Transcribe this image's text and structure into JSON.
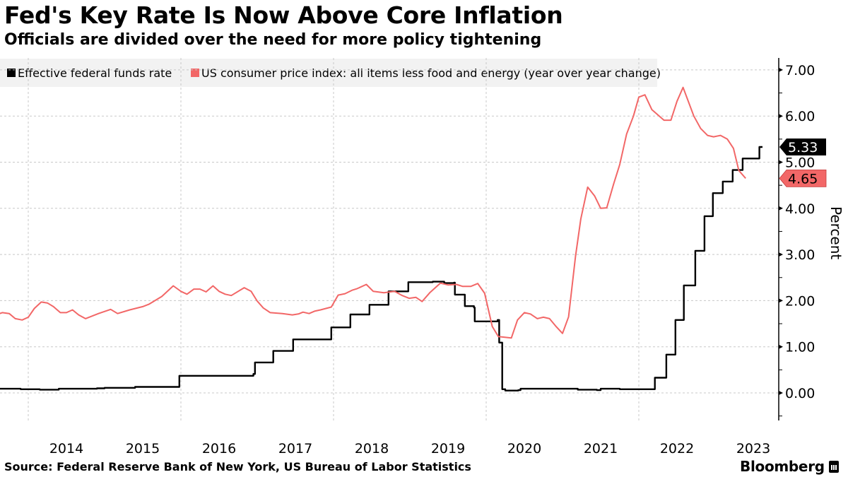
{
  "header": {
    "title": "Fed's Key Rate Is Now Above Core Inflation",
    "subtitle": "Officials are divided over the need for more policy tightening"
  },
  "footer": {
    "source": "Source: Federal Reserve Bank of New York, US Bureau of Labor Statistics",
    "brand": "Bloomberg",
    "brand_icon": "bloomberg-terminal-icon"
  },
  "colors": {
    "fed_funds": "#000000",
    "core_cpi": "#f26767",
    "legend_bg": "#f2f2f2",
    "grid": "#c8c8c8"
  },
  "chart_data": {
    "type": "line",
    "title": "Fed's Key Rate Is Now Above Core Inflation",
    "subtitle": "Officials are divided over the need for more policy tightening",
    "xlabel": "",
    "ylabel": "Percent",
    "ylim": [
      -0.6,
      7.2
    ],
    "xlim": [
      2013.37,
      2023.62
    ],
    "y_ticks": [
      0,
      1,
      2,
      3,
      4,
      5,
      6,
      7
    ],
    "y_tick_labels": [
      "0.00",
      "1.00",
      "2.00",
      "3.00",
      "4.00",
      "5.00",
      "6.00",
      "7.00"
    ],
    "x_tick_labels": [
      "2014",
      "2015",
      "2016",
      "2017",
      "2018",
      "2019",
      "2020",
      "2021",
      "2022",
      "2023"
    ],
    "x_tick_positions": [
      2014.5,
      2015.5,
      2016.5,
      2017.5,
      2018.5,
      2019.5,
      2020.5,
      2021.5,
      2022.5,
      2023.5
    ],
    "x_gridlines": [
      2014,
      2016,
      2018,
      2020,
      2022
    ],
    "grid": true,
    "y_axis_side": "right",
    "legend_position": "top-left",
    "series": [
      {
        "name": "Effective federal funds rate",
        "color": "#000000",
        "step": true,
        "last_value_label": "5.33",
        "points": [
          [
            2013.37,
            0.09
          ],
          [
            2013.9,
            0.08
          ],
          [
            2014.15,
            0.07
          ],
          [
            2014.4,
            0.09
          ],
          [
            2014.9,
            0.1
          ],
          [
            2015.0,
            0.11
          ],
          [
            2015.4,
            0.13
          ],
          [
            2015.95,
            0.13
          ],
          [
            2015.98,
            0.37
          ],
          [
            2016.95,
            0.41
          ],
          [
            2016.97,
            0.66
          ],
          [
            2017.2,
            0.66
          ],
          [
            2017.21,
            0.91
          ],
          [
            2017.46,
            0.91
          ],
          [
            2017.47,
            1.16
          ],
          [
            2017.96,
            1.16
          ],
          [
            2017.97,
            1.42
          ],
          [
            2018.21,
            1.42
          ],
          [
            2018.22,
            1.7
          ],
          [
            2018.46,
            1.7
          ],
          [
            2018.47,
            1.91
          ],
          [
            2018.71,
            1.91
          ],
          [
            2018.72,
            2.2
          ],
          [
            2018.97,
            2.2
          ],
          [
            2018.98,
            2.4
          ],
          [
            2019.3,
            2.41
          ],
          [
            2019.45,
            2.38
          ],
          [
            2019.58,
            2.39
          ],
          [
            2019.59,
            2.13
          ],
          [
            2019.71,
            2.13
          ],
          [
            2019.72,
            1.88
          ],
          [
            2019.84,
            1.85
          ],
          [
            2019.85,
            1.55
          ],
          [
            2020.15,
            1.58
          ],
          [
            2020.17,
            1.09
          ],
          [
            2020.21,
            0.08
          ],
          [
            2020.25,
            0.05
          ],
          [
            2020.42,
            0.06
          ],
          [
            2020.45,
            0.09
          ],
          [
            2021.2,
            0.07
          ],
          [
            2021.45,
            0.06
          ],
          [
            2021.5,
            0.09
          ],
          [
            2021.75,
            0.08
          ],
          [
            2022.2,
            0.08
          ],
          [
            2022.21,
            0.33
          ],
          [
            2022.35,
            0.33
          ],
          [
            2022.36,
            0.83
          ],
          [
            2022.47,
            0.83
          ],
          [
            2022.48,
            1.58
          ],
          [
            2022.58,
            1.58
          ],
          [
            2022.59,
            2.33
          ],
          [
            2022.73,
            2.33
          ],
          [
            2022.74,
            3.08
          ],
          [
            2022.85,
            3.08
          ],
          [
            2022.86,
            3.83
          ],
          [
            2022.96,
            3.83
          ],
          [
            2022.97,
            4.33
          ],
          [
            2023.09,
            4.33
          ],
          [
            2023.1,
            4.58
          ],
          [
            2023.22,
            4.58
          ],
          [
            2023.23,
            4.83
          ],
          [
            2023.35,
            4.83
          ],
          [
            2023.36,
            5.08
          ],
          [
            2023.57,
            5.08
          ],
          [
            2023.58,
            5.33
          ],
          [
            2023.62,
            5.33
          ]
        ]
      },
      {
        "name": "US consumer price index: all items less food and energy (year over year change)",
        "color": "#f26767",
        "step": false,
        "last_value_label": "4.65",
        "points": [
          [
            2013.42,
            1.77
          ],
          [
            2013.58,
            1.69
          ],
          [
            2013.66,
            1.74
          ],
          [
            2013.75,
            1.72
          ],
          [
            2013.83,
            1.61
          ],
          [
            2013.92,
            1.58
          ],
          [
            2014.0,
            1.64
          ],
          [
            2014.08,
            1.83
          ],
          [
            2014.17,
            1.97
          ],
          [
            2014.25,
            1.95
          ],
          [
            2014.33,
            1.87
          ],
          [
            2014.42,
            1.74
          ],
          [
            2014.5,
            1.74
          ],
          [
            2014.58,
            1.8
          ],
          [
            2014.66,
            1.69
          ],
          [
            2014.75,
            1.61
          ],
          [
            2014.92,
            1.72
          ],
          [
            2015.08,
            1.81
          ],
          [
            2015.17,
            1.72
          ],
          [
            2015.33,
            1.8
          ],
          [
            2015.5,
            1.87
          ],
          [
            2015.58,
            1.92
          ],
          [
            2015.75,
            2.09
          ],
          [
            2015.9,
            2.32
          ],
          [
            2016.0,
            2.2
          ],
          [
            2016.08,
            2.14
          ],
          [
            2016.17,
            2.25
          ],
          [
            2016.25,
            2.25
          ],
          [
            2016.33,
            2.19
          ],
          [
            2016.42,
            2.32
          ],
          [
            2016.5,
            2.2
          ],
          [
            2016.58,
            2.14
          ],
          [
            2016.66,
            2.11
          ],
          [
            2016.83,
            2.28
          ],
          [
            2016.92,
            2.2
          ],
          [
            2017.0,
            1.99
          ],
          [
            2017.08,
            1.84
          ],
          [
            2017.17,
            1.74
          ],
          [
            2017.33,
            1.72
          ],
          [
            2017.46,
            1.69
          ],
          [
            2017.54,
            1.71
          ],
          [
            2017.6,
            1.75
          ],
          [
            2017.68,
            1.72
          ],
          [
            2017.75,
            1.77
          ],
          [
            2017.83,
            1.8
          ],
          [
            2017.97,
            1.86
          ],
          [
            2018.06,
            2.12
          ],
          [
            2018.15,
            2.15
          ],
          [
            2018.25,
            2.23
          ],
          [
            2018.31,
            2.26
          ],
          [
            2018.43,
            2.35
          ],
          [
            2018.52,
            2.2
          ],
          [
            2018.66,
            2.17
          ],
          [
            2018.8,
            2.2
          ],
          [
            2018.9,
            2.11
          ],
          [
            2018.99,
            2.05
          ],
          [
            2019.08,
            2.07
          ],
          [
            2019.16,
            1.98
          ],
          [
            2019.26,
            2.17
          ],
          [
            2019.4,
            2.38
          ],
          [
            2019.5,
            2.34
          ],
          [
            2019.61,
            2.35
          ],
          [
            2019.69,
            2.31
          ],
          [
            2019.8,
            2.31
          ],
          [
            2019.89,
            2.37
          ],
          [
            2019.98,
            2.16
          ],
          [
            2020.08,
            1.44
          ],
          [
            2020.16,
            1.22
          ],
          [
            2020.33,
            1.19
          ],
          [
            2020.41,
            1.58
          ],
          [
            2020.5,
            1.74
          ],
          [
            2020.58,
            1.71
          ],
          [
            2020.67,
            1.61
          ],
          [
            2020.75,
            1.64
          ],
          [
            2020.83,
            1.61
          ],
          [
            2020.92,
            1.43
          ],
          [
            2021.0,
            1.29
          ],
          [
            2021.08,
            1.65
          ],
          [
            2021.17,
            2.96
          ],
          [
            2021.24,
            3.77
          ],
          [
            2021.33,
            4.46
          ],
          [
            2021.42,
            4.27
          ],
          [
            2021.5,
            4.0
          ],
          [
            2021.58,
            4.01
          ],
          [
            2021.67,
            4.53
          ],
          [
            2021.75,
            4.95
          ],
          [
            2021.84,
            5.61
          ],
          [
            2021.93,
            6.0
          ],
          [
            2022.0,
            6.41
          ],
          [
            2022.08,
            6.46
          ],
          [
            2022.17,
            6.14
          ],
          [
            2022.33,
            5.91
          ],
          [
            2022.42,
            5.91
          ],
          [
            2022.5,
            6.32
          ],
          [
            2022.58,
            6.62
          ],
          [
            2022.72,
            6.0
          ],
          [
            2022.81,
            5.73
          ],
          [
            2022.9,
            5.58
          ],
          [
            2022.98,
            5.55
          ],
          [
            2023.07,
            5.58
          ],
          [
            2023.16,
            5.5
          ],
          [
            2023.24,
            5.3
          ],
          [
            2023.31,
            4.82
          ],
          [
            2023.4,
            4.65
          ]
        ]
      }
    ]
  }
}
